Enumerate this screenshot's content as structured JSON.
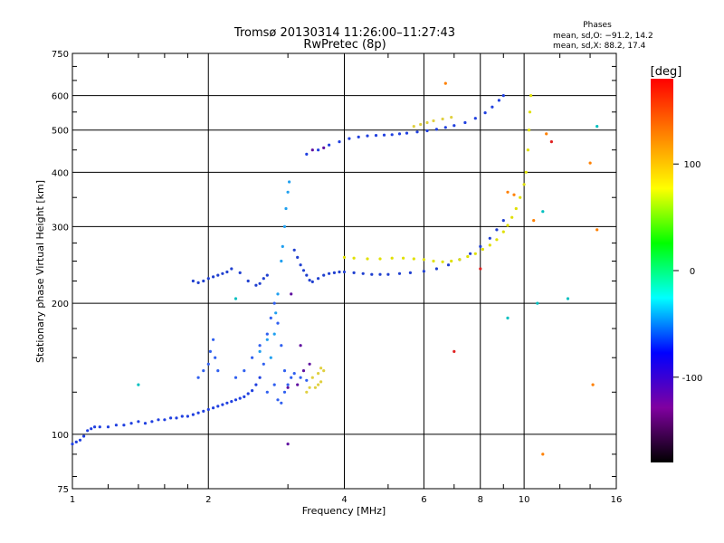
{
  "chart_data": {
    "type": "scatter",
    "title": "Tromsø 20130314 11:26:00–11:27:43",
    "subtitle": "RwPretec (8p)",
    "xlabel": "Frequency [MHz]",
    "ylabel": "Stationary phase Virtual Height [km]",
    "xscale": "log",
    "yscale": "log",
    "xlim": [
      1,
      16
    ],
    "ylim": [
      75,
      750
    ],
    "grid": true,
    "x_ticks": [
      1,
      2,
      4,
      6,
      8,
      10,
      16
    ],
    "y_ticks": [
      75,
      100,
      200,
      300,
      400,
      500,
      600,
      750
    ],
    "vertical_gridlines": [
      2,
      4,
      6,
      8,
      10
    ],
    "horizontal_gridlines": [
      100,
      200,
      300,
      400,
      500,
      600
    ],
    "stats": {
      "heading": "Phases",
      "line1": "mean, sd,O: −91.2, 14.2",
      "line2": "mean, sd,X:  88.2, 17.4"
    },
    "colorbar": {
      "label": "[deg]",
      "range": [
        -180,
        180
      ],
      "ticks": [
        100,
        0,
        -100
      ],
      "colors": [
        "#ff0000",
        "#ff8000",
        "#ffff00",
        "#00ff00",
        "#00ffff",
        "#0000ff",
        "#8000a0",
        "#000000"
      ]
    },
    "series": [
      {
        "color": "#2040e0",
        "points": [
          [
            1.0,
            95
          ],
          [
            1.02,
            96
          ],
          [
            1.04,
            97
          ],
          [
            1.06,
            99
          ],
          [
            1.08,
            102
          ],
          [
            1.1,
            103
          ],
          [
            1.12,
            104
          ],
          [
            1.15,
            104
          ],
          [
            1.2,
            104
          ],
          [
            1.25,
            105
          ],
          [
            1.3,
            105
          ],
          [
            1.35,
            106
          ],
          [
            1.4,
            107
          ],
          [
            1.45,
            106
          ],
          [
            1.5,
            107
          ],
          [
            1.55,
            108
          ],
          [
            1.6,
            108
          ],
          [
            1.65,
            109
          ],
          [
            1.7,
            109
          ],
          [
            1.75,
            110
          ],
          [
            1.8,
            110
          ],
          [
            1.85,
            111
          ],
          [
            1.9,
            112
          ],
          [
            1.95,
            113
          ],
          [
            2.0,
            114
          ],
          [
            2.05,
            115
          ],
          [
            2.1,
            116
          ],
          [
            2.15,
            117
          ],
          [
            2.2,
            118
          ],
          [
            2.25,
            119
          ],
          [
            2.3,
            120
          ],
          [
            2.35,
            121
          ],
          [
            2.4,
            122
          ],
          [
            2.45,
            124
          ],
          [
            2.5,
            126
          ],
          [
            2.55,
            130
          ],
          [
            2.6,
            135
          ]
        ]
      },
      {
        "color": "#3060f0",
        "points": [
          [
            1.9,
            135
          ],
          [
            1.95,
            140
          ],
          [
            2.0,
            145
          ],
          [
            2.02,
            155
          ],
          [
            2.05,
            165
          ],
          [
            2.07,
            150
          ],
          [
            2.1,
            140
          ],
          [
            2.3,
            135
          ],
          [
            2.4,
            140
          ],
          [
            2.5,
            150
          ],
          [
            2.6,
            160
          ],
          [
            2.7,
            170
          ],
          [
            2.75,
            185
          ],
          [
            2.8,
            200
          ],
          [
            2.85,
            180
          ],
          [
            2.9,
            160
          ],
          [
            2.95,
            140
          ],
          [
            2.8,
            130
          ],
          [
            2.7,
            125
          ],
          [
            2.65,
            145
          ],
          [
            2.85,
            120
          ],
          [
            2.9,
            118
          ],
          [
            2.95,
            125
          ],
          [
            3.0,
            130
          ],
          [
            3.05,
            135
          ],
          [
            3.1,
            138
          ],
          [
            3.2,
            135
          ],
          [
            3.3,
            133
          ]
        ]
      },
      {
        "color": "#20a0f0",
        "points": [
          [
            2.75,
            150
          ],
          [
            2.8,
            170
          ],
          [
            2.82,
            190
          ],
          [
            2.85,
            210
          ],
          [
            2.9,
            250
          ],
          [
            2.92,
            270
          ],
          [
            2.95,
            300
          ],
          [
            2.97,
            330
          ],
          [
            3.0,
            360
          ],
          [
            3.02,
            380
          ],
          [
            2.7,
            165
          ],
          [
            2.6,
            155
          ]
        ]
      },
      {
        "color": "#2040d0",
        "points": [
          [
            1.85,
            225
          ],
          [
            1.9,
            223
          ],
          [
            1.95,
            225
          ],
          [
            2.0,
            228
          ],
          [
            2.05,
            230
          ],
          [
            2.1,
            232
          ],
          [
            2.15,
            234
          ],
          [
            2.2,
            236
          ],
          [
            2.25,
            240
          ],
          [
            2.35,
            235
          ],
          [
            2.45,
            225
          ],
          [
            2.55,
            220
          ],
          [
            2.6,
            222
          ],
          [
            2.65,
            228
          ],
          [
            2.7,
            232
          ],
          [
            3.1,
            265
          ],
          [
            3.15,
            255
          ],
          [
            3.2,
            245
          ],
          [
            3.25,
            238
          ],
          [
            3.3,
            232
          ],
          [
            3.35,
            226
          ],
          [
            3.4,
            224
          ],
          [
            3.5,
            228
          ],
          [
            3.6,
            232
          ],
          [
            3.7,
            234
          ],
          [
            3.8,
            235
          ],
          [
            3.9,
            236
          ],
          [
            4.0,
            236
          ],
          [
            4.2,
            235
          ],
          [
            4.4,
            234
          ],
          [
            4.6,
            233
          ],
          [
            4.8,
            233
          ],
          [
            5.0,
            233
          ],
          [
            5.3,
            234
          ],
          [
            5.6,
            235
          ],
          [
            6.0,
            237
          ],
          [
            6.4,
            240
          ],
          [
            6.8,
            245
          ],
          [
            7.2,
            252
          ],
          [
            7.6,
            260
          ],
          [
            8.0,
            270
          ],
          [
            8.4,
            282
          ],
          [
            8.7,
            295
          ],
          [
            9.0,
            310
          ]
        ]
      },
      {
        "color": "#e0e000",
        "points": [
          [
            4.0,
            255
          ],
          [
            4.2,
            254
          ],
          [
            4.5,
            253
          ],
          [
            4.8,
            253
          ],
          [
            5.1,
            254
          ],
          [
            5.4,
            254
          ],
          [
            5.7,
            253
          ],
          [
            6.0,
            252
          ],
          [
            6.3,
            250
          ],
          [
            6.6,
            249
          ],
          [
            6.9,
            250
          ],
          [
            7.2,
            252
          ],
          [
            7.5,
            256
          ],
          [
            7.8,
            260
          ],
          [
            8.1,
            266
          ],
          [
            8.4,
            272
          ],
          [
            8.7,
            280
          ],
          [
            9.0,
            292
          ],
          [
            9.2,
            302
          ],
          [
            9.4,
            315
          ],
          [
            9.6,
            330
          ],
          [
            9.8,
            350
          ],
          [
            10.0,
            375
          ],
          [
            10.1,
            400
          ],
          [
            10.2,
            450
          ],
          [
            10.25,
            500
          ],
          [
            10.3,
            550
          ],
          [
            10.35,
            600
          ]
        ]
      },
      {
        "color": "#2040e0",
        "points": [
          [
            3.3,
            440
          ],
          [
            3.5,
            450
          ],
          [
            3.7,
            462
          ],
          [
            3.9,
            470
          ],
          [
            4.1,
            478
          ],
          [
            4.3,
            482
          ],
          [
            4.5,
            485
          ],
          [
            4.7,
            486
          ],
          [
            4.9,
            487
          ],
          [
            5.1,
            488
          ],
          [
            5.3,
            490
          ],
          [
            5.5,
            492
          ],
          [
            5.8,
            495
          ],
          [
            6.1,
            498
          ],
          [
            6.4,
            502
          ],
          [
            6.7,
            507
          ],
          [
            7.0,
            512
          ],
          [
            7.4,
            520
          ],
          [
            7.8,
            532
          ],
          [
            8.2,
            548
          ],
          [
            8.5,
            565
          ],
          [
            8.8,
            585
          ],
          [
            9.0,
            600
          ]
        ]
      },
      {
        "color": "#e0d040",
        "points": [
          [
            3.4,
            135
          ],
          [
            3.5,
            138
          ],
          [
            3.55,
            142
          ],
          [
            3.6,
            140
          ],
          [
            3.55,
            132
          ],
          [
            3.5,
            130
          ],
          [
            3.45,
            128
          ],
          [
            3.3,
            125
          ],
          [
            3.35,
            128
          ],
          [
            5.7,
            510
          ],
          [
            5.9,
            515
          ],
          [
            6.1,
            520
          ],
          [
            6.3,
            525
          ],
          [
            6.6,
            530
          ],
          [
            6.9,
            535
          ]
        ]
      },
      {
        "color": "#6010a0",
        "points": [
          [
            3.2,
            160
          ],
          [
            3.25,
            140
          ],
          [
            3.35,
            145
          ],
          [
            3.15,
            130
          ],
          [
            3.0,
            128
          ],
          [
            3.05,
            210
          ],
          [
            3.4,
            450
          ],
          [
            3.6,
            455
          ],
          [
            3.0,
            95
          ]
        ]
      },
      {
        "color": "#ff8000",
        "points": [
          [
            6.7,
            640
          ],
          [
            9.2,
            360
          ],
          [
            9.5,
            355
          ],
          [
            10.5,
            310
          ],
          [
            11.2,
            490
          ],
          [
            14.0,
            420
          ],
          [
            14.2,
            130
          ],
          [
            14.5,
            295
          ],
          [
            11.0,
            90
          ]
        ]
      },
      {
        "color": "#e02020",
        "points": [
          [
            7.0,
            155
          ],
          [
            8.0,
            240
          ],
          [
            11.5,
            470
          ]
        ]
      },
      {
        "color": "#00c0c0",
        "points": [
          [
            9.2,
            185
          ],
          [
            10.7,
            200
          ],
          [
            11.0,
            325
          ],
          [
            12.5,
            205
          ],
          [
            14.5,
            510
          ],
          [
            1.4,
            130
          ],
          [
            2.3,
            205
          ]
        ]
      }
    ]
  }
}
